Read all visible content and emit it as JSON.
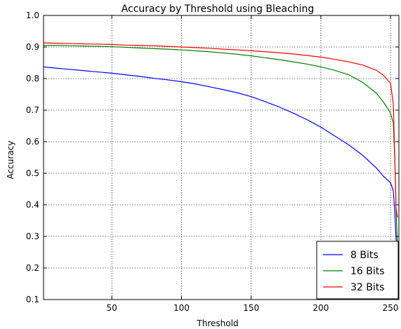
{
  "chart_data": {
    "type": "line",
    "title": "Accuracy by Threshold using Bleaching",
    "xlabel": "Threshold",
    "ylabel": "Accuracy",
    "xlim": [
      1,
      256
    ],
    "ylim": [
      0.1,
      1.0
    ],
    "xticks": [
      50,
      100,
      150,
      200,
      250
    ],
    "yticks": [
      0.1,
      0.2,
      0.3,
      0.4,
      0.5,
      0.6,
      0.7,
      0.8,
      0.9,
      1.0
    ],
    "ytick_labels": [
      "0.1",
      "0.2",
      "0.3",
      "0.4",
      "0.5",
      "0.6",
      "0.7",
      "0.8",
      "0.9",
      "1.0"
    ],
    "grid": true,
    "legend_position": "lower-right",
    "series": [
      {
        "name": "8 Bits",
        "color": "#0000ff",
        "x": [
          1,
          10,
          20,
          30,
          40,
          50,
          60,
          70,
          80,
          90,
          100,
          110,
          120,
          130,
          140,
          150,
          160,
          170,
          180,
          190,
          200,
          210,
          220,
          230,
          240,
          245,
          248,
          250,
          252,
          253,
          254,
          255
        ],
        "y": [
          0.837,
          0.833,
          0.829,
          0.825,
          0.821,
          0.817,
          0.812,
          0.807,
          0.801,
          0.796,
          0.79,
          0.783,
          0.774,
          0.765,
          0.755,
          0.743,
          0.727,
          0.71,
          0.691,
          0.67,
          0.646,
          0.618,
          0.59,
          0.557,
          0.516,
          0.49,
          0.478,
          0.47,
          0.445,
          0.38,
          0.29,
          0.26
        ]
      },
      {
        "name": "16 Bits",
        "color": "#008000",
        "x": [
          1,
          10,
          20,
          30,
          40,
          50,
          60,
          70,
          80,
          90,
          100,
          110,
          120,
          130,
          140,
          150,
          160,
          170,
          180,
          190,
          200,
          210,
          220,
          230,
          240,
          245,
          248,
          250,
          252,
          253,
          254,
          255
        ],
        "y": [
          0.905,
          0.905,
          0.904,
          0.903,
          0.902,
          0.901,
          0.899,
          0.897,
          0.895,
          0.893,
          0.891,
          0.888,
          0.885,
          0.881,
          0.877,
          0.872,
          0.866,
          0.86,
          0.853,
          0.846,
          0.837,
          0.826,
          0.812,
          0.788,
          0.753,
          0.725,
          0.705,
          0.69,
          0.66,
          0.55,
          0.38,
          0.27
        ]
      },
      {
        "name": "32 Bits",
        "color": "#ff0000",
        "x": [
          1,
          10,
          20,
          30,
          40,
          50,
          60,
          70,
          80,
          90,
          100,
          110,
          120,
          130,
          140,
          150,
          160,
          170,
          180,
          190,
          200,
          210,
          220,
          230,
          240,
          245,
          248,
          250,
          252,
          253,
          254,
          255
        ],
        "y": [
          0.913,
          0.912,
          0.911,
          0.91,
          0.909,
          0.908,
          0.906,
          0.905,
          0.904,
          0.902,
          0.9,
          0.898,
          0.896,
          0.893,
          0.891,
          0.888,
          0.885,
          0.882,
          0.878,
          0.873,
          0.868,
          0.861,
          0.853,
          0.843,
          0.826,
          0.81,
          0.795,
          0.785,
          0.72,
          0.56,
          0.39,
          0.36
        ]
      }
    ]
  }
}
